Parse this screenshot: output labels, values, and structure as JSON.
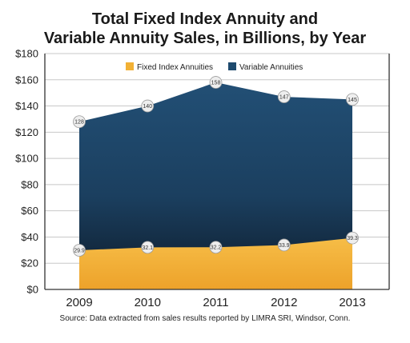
{
  "chart_data": {
    "type": "area",
    "title_line1": "Total Fixed Index Annuity and",
    "title_line2": "Variable Annuity Sales, in Billions, by Year",
    "categories": [
      "2009",
      "2010",
      "2011",
      "2012",
      "2013"
    ],
    "series": [
      {
        "name": "Fixed Index Annuities",
        "values": [
          29.9,
          32.1,
          32.2,
          33.9,
          39.3
        ],
        "labels": [
          "29.9",
          "32.1",
          "32.2",
          "33.9",
          "39.3"
        ],
        "color": "#f2b135"
      },
      {
        "name": "Variable Annuities",
        "values": [
          128,
          140,
          158,
          147,
          145
        ],
        "labels": [
          "128",
          "140",
          "158",
          "147",
          "145"
        ],
        "color": "#1e4a6e"
      }
    ],
    "ylim": [
      0,
      180
    ],
    "yticks": [
      "$0",
      "$20",
      "$40",
      "$60",
      "$80",
      "$100",
      "$120",
      "$140",
      "$160",
      "$180"
    ],
    "legend_position": "top-center",
    "grid": "horizontal",
    "source": "Source: Data extracted from sales results reported by LIMRA SRI, Windsor, Conn."
  }
}
